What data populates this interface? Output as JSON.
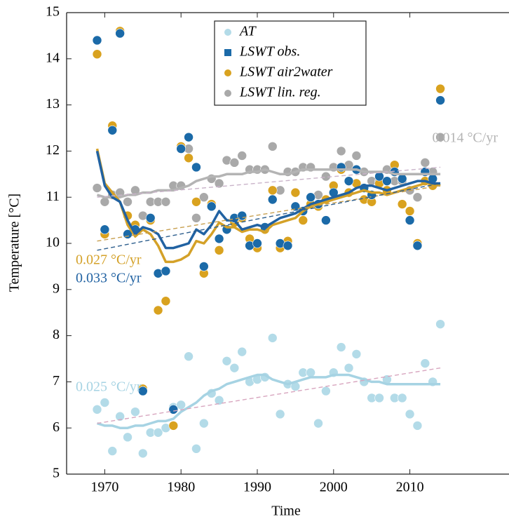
{
  "chart_data": {
    "type": "scatter",
    "x_label": "Time",
    "y_label": "Temperature [°C]",
    "xlim": [
      1965,
      2023
    ],
    "ylim": [
      5,
      15
    ],
    "xticks": [
      1970,
      1980,
      1990,
      2000,
      2010
    ],
    "yticks": [
      5,
      6,
      7,
      8,
      9,
      10,
      11,
      12,
      13,
      14,
      15
    ],
    "legend": "top",
    "trend_x": [
      1969,
      2014
    ],
    "x": [
      1969,
      1970,
      1971,
      1972,
      1973,
      1974,
      1975,
      1976,
      1977,
      1978,
      1979,
      1980,
      1981,
      1982,
      1983,
      1984,
      1985,
      1986,
      1987,
      1988,
      1989,
      1990,
      1991,
      1992,
      1993,
      1994,
      1995,
      1996,
      1997,
      1998,
      1999,
      2000,
      2001,
      2002,
      2003,
      2004,
      2005,
      2006,
      2007,
      2008,
      2009,
      2010,
      2011,
      2012,
      2013,
      2014
    ],
    "series": [
      {
        "name": "AT",
        "color": "#b3dbe8",
        "legend_marker": "circle",
        "smooth_color": "#a6d3e3",
        "trend_color": "#d8a6bf",
        "trend": [
          6.1,
          7.3
        ],
        "trend_label": "0.025 °C/yr",
        "values": [
          6.4,
          6.55,
          5.5,
          6.25,
          5.8,
          6.35,
          5.45,
          5.9,
          5.9,
          6.0,
          6.45,
          6.5,
          7.55,
          5.55,
          6.1,
          6.75,
          6.6,
          7.45,
          7.3,
          7.65,
          7.0,
          7.05,
          7.1,
          7.95,
          6.3,
          6.95,
          6.9,
          7.2,
          7.2,
          6.1,
          6.8,
          7.2,
          7.75,
          7.3,
          7.6,
          7.0,
          6.65,
          6.65,
          7.05,
          6.65,
          6.65,
          6.3,
          6.05,
          7.4,
          7.0,
          8.25
        ],
        "smooth": [
          6.1,
          6.05,
          6.05,
          6.0,
          6.0,
          6.05,
          6.05,
          6.1,
          6.15,
          6.15,
          6.2,
          6.35,
          6.45,
          6.55,
          6.7,
          6.8,
          6.85,
          6.95,
          7.0,
          7.05,
          7.1,
          7.15,
          7.15,
          7.05,
          7.0,
          6.95,
          7.0,
          7.05,
          7.1,
          7.1,
          7.1,
          7.15,
          7.15,
          7.15,
          7.1,
          7.05,
          7.0,
          7.0,
          6.95,
          6.95,
          6.95,
          6.95,
          6.95,
          6.95,
          6.95,
          6.95
        ]
      },
      {
        "name": "LSWT lin. reg.",
        "color": "#a9a9a9",
        "legend_marker": "circle",
        "smooth_color": "#b4b4b4",
        "trend_color": "#c9b3c9",
        "trend": [
          11.0,
          11.65
        ],
        "trend_label": "0.014 °C/yr",
        "values": [
          11.2,
          10.9,
          11.05,
          11.1,
          10.9,
          11.15,
          10.6,
          10.9,
          10.9,
          10.9,
          11.25,
          11.25,
          12.05,
          10.55,
          11.0,
          11.4,
          11.3,
          11.8,
          11.75,
          11.9,
          11.6,
          11.6,
          11.6,
          12.1,
          11.15,
          11.55,
          11.55,
          11.65,
          11.65,
          11.05,
          11.45,
          11.65,
          12.0,
          11.7,
          11.9,
          11.55,
          11.35,
          11.35,
          11.6,
          11.35,
          11.35,
          11.15,
          11.0,
          11.75,
          11.55,
          12.3
        ],
        "smooth": [
          11.05,
          11.0,
          11.0,
          11.0,
          11.05,
          11.05,
          11.1,
          11.1,
          11.15,
          11.15,
          11.15,
          11.2,
          11.25,
          11.35,
          11.4,
          11.45,
          11.45,
          11.5,
          11.5,
          11.5,
          11.55,
          11.55,
          11.6,
          11.55,
          11.5,
          11.5,
          11.55,
          11.6,
          11.6,
          11.6,
          11.6,
          11.6,
          11.6,
          11.6,
          11.6,
          11.55,
          11.55,
          11.55,
          11.55,
          11.5,
          11.5,
          11.5,
          11.5,
          11.5,
          11.5,
          11.5
        ]
      },
      {
        "name": "LSWT air2water",
        "color": "#d9a21f",
        "legend_marker": "circle",
        "smooth_color": "#d4a128",
        "trend_color": "#c8a050",
        "trend": [
          10.05,
          11.25
        ],
        "trend_label": "0.027 °C/yr",
        "values": [
          14.1,
          10.2,
          12.55,
          14.6,
          10.6,
          10.4,
          6.85,
          10.5,
          8.55,
          8.75,
          6.05,
          12.1,
          11.85,
          10.9,
          9.35,
          10.85,
          9.85,
          10.3,
          10.45,
          10.55,
          10.1,
          9.9,
          10.3,
          11.15,
          9.9,
          10.05,
          11.1,
          10.5,
          10.85,
          10.8,
          10.95,
          11.25,
          11.6,
          11.1,
          11.3,
          10.95,
          10.9,
          11.3,
          11.15,
          11.7,
          10.85,
          10.7,
          10.0,
          11.35,
          11.25,
          13.35
        ],
        "smooth": [
          12.05,
          11.3,
          11.1,
          10.9,
          10.4,
          10.15,
          10.3,
          10.2,
          9.95,
          9.6,
          9.6,
          9.65,
          9.75,
          10.05,
          10.0,
          10.2,
          10.45,
          10.35,
          10.35,
          10.25,
          10.3,
          10.3,
          10.25,
          10.4,
          10.45,
          10.5,
          10.55,
          10.7,
          10.8,
          10.85,
          10.9,
          10.95,
          11.0,
          11.05,
          11.1,
          11.15,
          11.1,
          11.1,
          11.05,
          11.1,
          11.15,
          11.2,
          11.25,
          11.3,
          11.3,
          11.25
        ]
      },
      {
        "name": "LSWT  obs.",
        "color": "#1b6aa8",
        "legend_marker": "square",
        "smooth_color": "#2162a2",
        "trend_color": "#2e5f8e",
        "trend": [
          9.85,
          11.3
        ],
        "trend_label": "0.033 °C/yr",
        "values": [
          14.4,
          10.3,
          12.45,
          14.55,
          10.2,
          10.3,
          6.8,
          10.55,
          9.35,
          9.4,
          6.4,
          12.05,
          12.3,
          11.65,
          9.5,
          10.8,
          10.1,
          10.3,
          10.55,
          10.6,
          9.95,
          10.0,
          10.35,
          10.95,
          10.0,
          9.95,
          10.8,
          10.7,
          11.0,
          10.85,
          10.5,
          11.1,
          11.65,
          11.35,
          11.6,
          11.2,
          11.05,
          11.45,
          11.35,
          11.55,
          11.4,
          10.5,
          9.95,
          11.55,
          11.4,
          13.1
        ],
        "smooth": [
          12.0,
          11.25,
          11.0,
          10.9,
          10.5,
          10.2,
          10.35,
          10.3,
          10.2,
          9.9,
          9.9,
          9.95,
          10.0,
          10.3,
          10.2,
          10.4,
          10.7,
          10.5,
          10.5,
          10.3,
          10.35,
          10.4,
          10.35,
          10.45,
          10.55,
          10.6,
          10.65,
          10.75,
          10.85,
          10.9,
          10.95,
          11.0,
          11.05,
          11.1,
          11.2,
          11.25,
          11.25,
          11.2,
          11.15,
          11.2,
          11.25,
          11.3,
          11.35,
          11.35,
          11.3,
          11.3
        ]
      }
    ]
  }
}
